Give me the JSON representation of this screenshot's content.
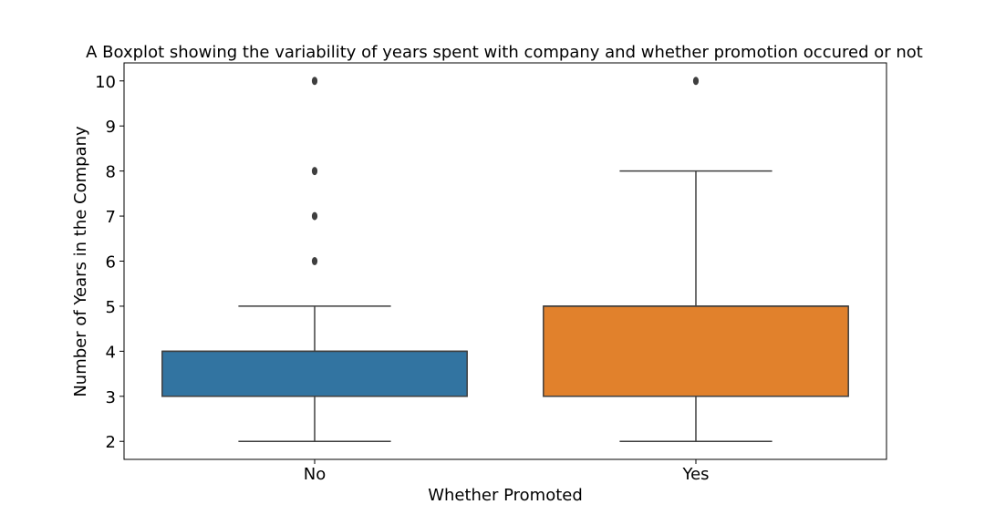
{
  "chart_data": {
    "type": "boxplot",
    "title": "A Boxplot showing the variability of years spent with company and whether promotion occured or not",
    "xlabel": "Whether Promoted",
    "ylabel": "Number of Years in the Company",
    "categories": [
      "No",
      "Yes"
    ],
    "ylim": [
      1.6,
      10.4
    ],
    "yticks": [
      "2",
      "3",
      "4",
      "5",
      "6",
      "7",
      "8",
      "9",
      "10"
    ],
    "boxes": [
      {
        "category": "No",
        "whisker_low": 2,
        "q1": 3,
        "median": 4,
        "q3": 4,
        "whisker_high": 5,
        "outliers": [
          6,
          7,
          8,
          10
        ],
        "color": "#3274a1"
      },
      {
        "category": "Yes",
        "whisker_low": 2,
        "q1": 3,
        "median": 5,
        "q3": 5,
        "whisker_high": 8,
        "outliers": [
          10
        ],
        "color": "#e1812c"
      }
    ],
    "grid": false,
    "legend": "none"
  }
}
